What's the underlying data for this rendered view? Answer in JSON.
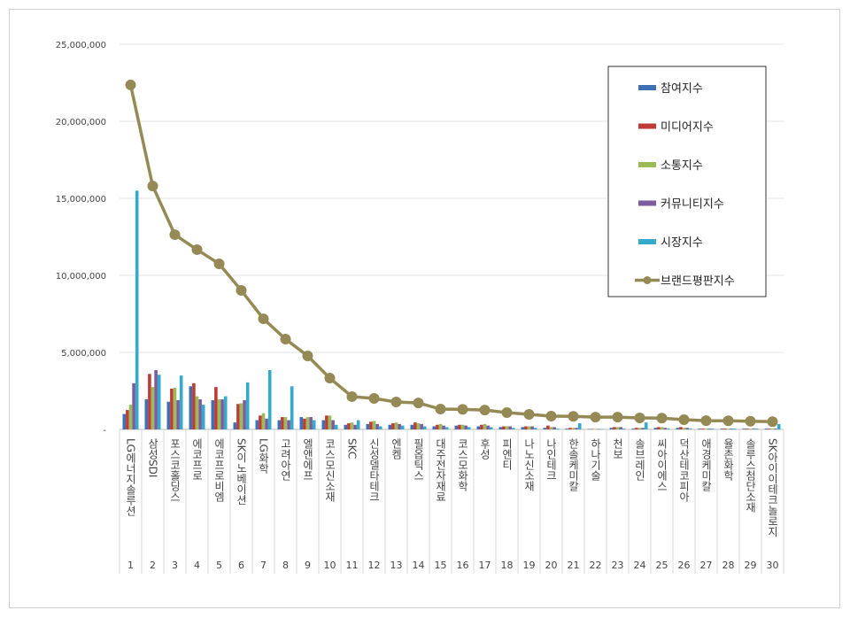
{
  "chart_data": {
    "type": "bar",
    "title": "",
    "xlabel": "",
    "ylabel": "",
    "ylim": [
      0,
      25000000
    ],
    "y_ticks": [
      "-",
      "5,000,000",
      "10,000,000",
      "15,000,000",
      "20,000,000",
      "25,000,000"
    ],
    "grid": true,
    "legend_position": "top-right",
    "ranks": [
      "1",
      "2",
      "3",
      "4",
      "5",
      "6",
      "7",
      "8",
      "9",
      "10",
      "11",
      "12",
      "13",
      "14",
      "15",
      "16",
      "17",
      "18",
      "19",
      "20",
      "21",
      "22",
      "23",
      "24",
      "25",
      "26",
      "27",
      "28",
      "29",
      "30"
    ],
    "categories": [
      "LG에너지솔루션",
      "삼성SDI",
      "포스코홀딩스",
      "에코프로",
      "에코프로비엠",
      "SK이노베이션",
      "LG화학",
      "고려아연",
      "엘앤에프",
      "코스모신소재",
      "SKC",
      "신성델타테크",
      "엔켐",
      "필옵틱스",
      "대주전자재료",
      "코스모화학",
      "후성",
      "피엔티",
      "나노신소재",
      "나인테크",
      "한솔케미칼",
      "하나기술",
      "천보",
      "솔브레인",
      "씨아이에스",
      "덕산테코피아",
      "애경케미칼",
      "율촌화학",
      "솔루스첨단소재",
      "SK아이이테크놀로지"
    ],
    "series": [
      {
        "name": "참여지수",
        "type": "bar",
        "color": "#3f6fb5",
        "values": [
          1000000,
          1950000,
          1800000,
          2800000,
          1900000,
          450000,
          600000,
          600000,
          800000,
          600000,
          300000,
          350000,
          300000,
          300000,
          200000,
          250000,
          200000,
          150000,
          150000,
          100000,
          50000,
          30000,
          100000,
          50000,
          100000,
          100000,
          50000,
          50000,
          50000,
          50000
        ]
      },
      {
        "name": "미디어지수",
        "type": "bar",
        "color": "#be3b36",
        "values": [
          1260000,
          3600000,
          2650000,
          3000000,
          2750000,
          1650000,
          900000,
          800000,
          700000,
          900000,
          400000,
          500000,
          400000,
          450000,
          300000,
          300000,
          300000,
          200000,
          200000,
          250000,
          100000,
          30000,
          150000,
          100000,
          150000,
          150000,
          50000,
          50000,
          50000,
          50000
        ]
      },
      {
        "name": "소통지수",
        "type": "bar",
        "color": "#9bbb59",
        "values": [
          1600000,
          2750000,
          2700000,
          2150000,
          1950000,
          1700000,
          1050000,
          800000,
          800000,
          900000,
          450000,
          550000,
          450000,
          400000,
          350000,
          300000,
          350000,
          200000,
          200000,
          150000,
          100000,
          30000,
          150000,
          100000,
          150000,
          100000,
          50000,
          50000,
          50000,
          50000
        ]
      },
      {
        "name": "커뮤니티지수",
        "type": "bar",
        "color": "#7b5d9f",
        "values": [
          3000000,
          3850000,
          1900000,
          1950000,
          1950000,
          1900000,
          700000,
          600000,
          800000,
          600000,
          300000,
          350000,
          350000,
          350000,
          250000,
          250000,
          250000,
          200000,
          200000,
          150000,
          100000,
          30000,
          150000,
          100000,
          100000,
          100000,
          50000,
          50000,
          50000,
          50000
        ]
      },
      {
        "name": "시장지수",
        "type": "bar",
        "color": "#35aacb",
        "values": [
          15500000,
          3550000,
          3500000,
          1600000,
          2150000,
          3050000,
          3850000,
          2800000,
          600000,
          300000,
          600000,
          200000,
          250000,
          200000,
          150000,
          150000,
          150000,
          100000,
          100000,
          50000,
          400000,
          30000,
          50000,
          450000,
          50000,
          50000,
          50000,
          50000,
          50000,
          350000
        ]
      },
      {
        "name": "브랜드평판지수",
        "type": "line",
        "color": "#958a55",
        "values": [
          22360000,
          15800000,
          12640000,
          11670000,
          10750000,
          9020000,
          7180000,
          5860000,
          4770000,
          3330000,
          2130000,
          2010000,
          1780000,
          1720000,
          1320000,
          1300000,
          1260000,
          1090000,
          980000,
          860000,
          850000,
          800000,
          800000,
          750000,
          730000,
          630000,
          570000,
          560000,
          530000,
          500000
        ]
      }
    ]
  }
}
